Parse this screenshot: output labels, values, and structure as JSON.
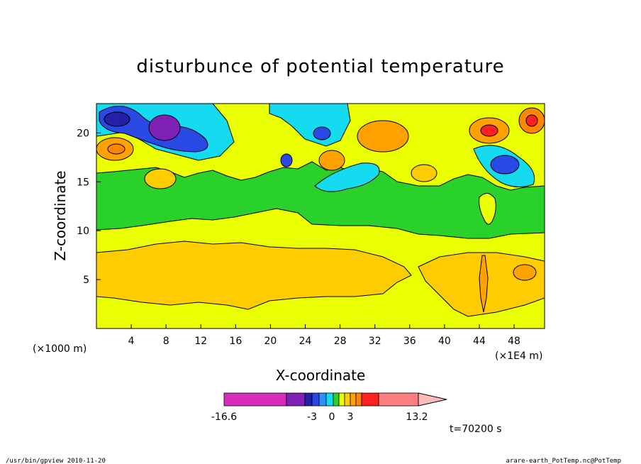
{
  "chart_data": {
    "type": "heatmap",
    "title": "disturbunce of potential temperature",
    "xlabel": "X-coordinate",
    "ylabel": "Z-coordinate",
    "x_unit": "(×1000 m)",
    "x_scale_note": "(×1E4 m)",
    "xlim": [
      0,
      51.5
    ],
    "ylim": [
      0,
      23
    ],
    "x_ticks": [
      4,
      8,
      12,
      16,
      20,
      24,
      28,
      32,
      36,
      40,
      44,
      48
    ],
    "y_ticks": [
      5,
      10,
      15,
      20
    ],
    "colorbar": {
      "min_label": "-16.6",
      "max_label": "13.2",
      "tick_labels": [
        "-3",
        "0",
        "3"
      ],
      "colors": [
        "#d82cb9",
        "#7f20b6",
        "#2420a8",
        "#2a48e3",
        "#2f8ff7",
        "#14dbf0",
        "#2ad12a",
        "#eaff00",
        "#ffcc00",
        "#ffa200",
        "#ff8600",
        "#ff2020",
        "#fc7f7f",
        "#fcbcbc"
      ]
    },
    "regions": [
      {
        "level": "yellow",
        "color": "#eaff00",
        "z_range": [
          0,
          10
        ]
      },
      {
        "level": "orange",
        "color": "#ffcc00",
        "z_range": [
          2.5,
          8
        ]
      },
      {
        "level": "green",
        "color": "#2ad12a",
        "z_range": [
          10,
          17
        ]
      },
      {
        "level": "cyan",
        "color": "#14dbf0",
        "z_range": [
          14,
          21
        ]
      },
      {
        "level": "blue",
        "color": "#2a48e3",
        "z_range": [
          17,
          22
        ]
      },
      {
        "level": "purple",
        "color": "#7f20b6",
        "z_range": [
          19,
          22
        ]
      },
      {
        "level": "red",
        "color": "#ff2020",
        "z_range": [
          20,
          22
        ]
      }
    ]
  },
  "time_label": "t=70200 s",
  "footer": {
    "left": "/usr/bin/gpview  2010-11-20",
    "right": "arare-earth_PotTemp.nc@PotTemp"
  }
}
